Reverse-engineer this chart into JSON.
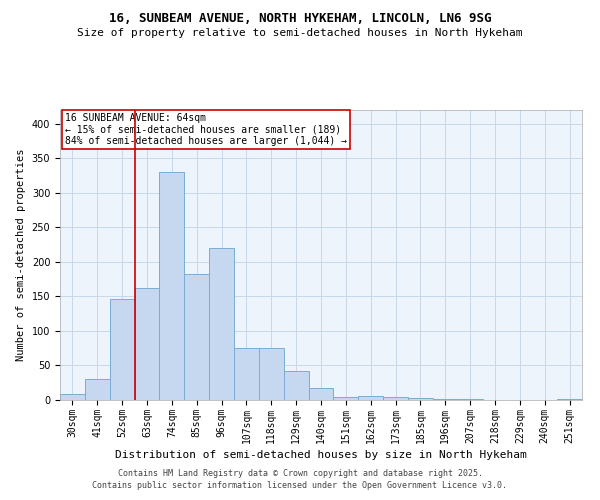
{
  "title1": "16, SUNBEAM AVENUE, NORTH HYKEHAM, LINCOLN, LN6 9SG",
  "title2": "Size of property relative to semi-detached houses in North Hykeham",
  "xlabel": "Distribution of semi-detached houses by size in North Hykeham",
  "ylabel": "Number of semi-detached properties",
  "categories": [
    "30sqm",
    "41sqm",
    "52sqm",
    "63sqm",
    "74sqm",
    "85sqm",
    "96sqm",
    "107sqm",
    "118sqm",
    "129sqm",
    "140sqm",
    "151sqm",
    "162sqm",
    "173sqm",
    "185sqm",
    "196sqm",
    "207sqm",
    "218sqm",
    "229sqm",
    "240sqm",
    "251sqm"
  ],
  "values": [
    8,
    30,
    147,
    162,
    330,
    183,
    220,
    75,
    75,
    42,
    17,
    5,
    6,
    5,
    3,
    1,
    1,
    0,
    0,
    0,
    1
  ],
  "bar_color": "#c5d8f0",
  "bar_edge_color": "#7aadd4",
  "vline_color": "#cc0000",
  "vline_x": 2.5,
  "annotation_text": "16 SUNBEAM AVENUE: 64sqm\n← 15% of semi-detached houses are smaller (189)\n84% of semi-detached houses are larger (1,044) →",
  "annotation_box_color": "#ffffff",
  "annotation_border_color": "#cc0000",
  "ylim": [
    0,
    420
  ],
  "yticks": [
    0,
    50,
    100,
    150,
    200,
    250,
    300,
    350,
    400
  ],
  "grid_color": "#c8d8e8",
  "background_color": "#eef4fb",
  "footer1": "Contains HM Land Registry data © Crown copyright and database right 2025.",
  "footer2": "Contains public sector information licensed under the Open Government Licence v3.0.",
  "title1_fontsize": 9,
  "title2_fontsize": 8,
  "xlabel_fontsize": 8,
  "ylabel_fontsize": 7.5,
  "tick_fontsize": 7,
  "footer_fontsize": 6,
  "annotation_fontsize": 7
}
